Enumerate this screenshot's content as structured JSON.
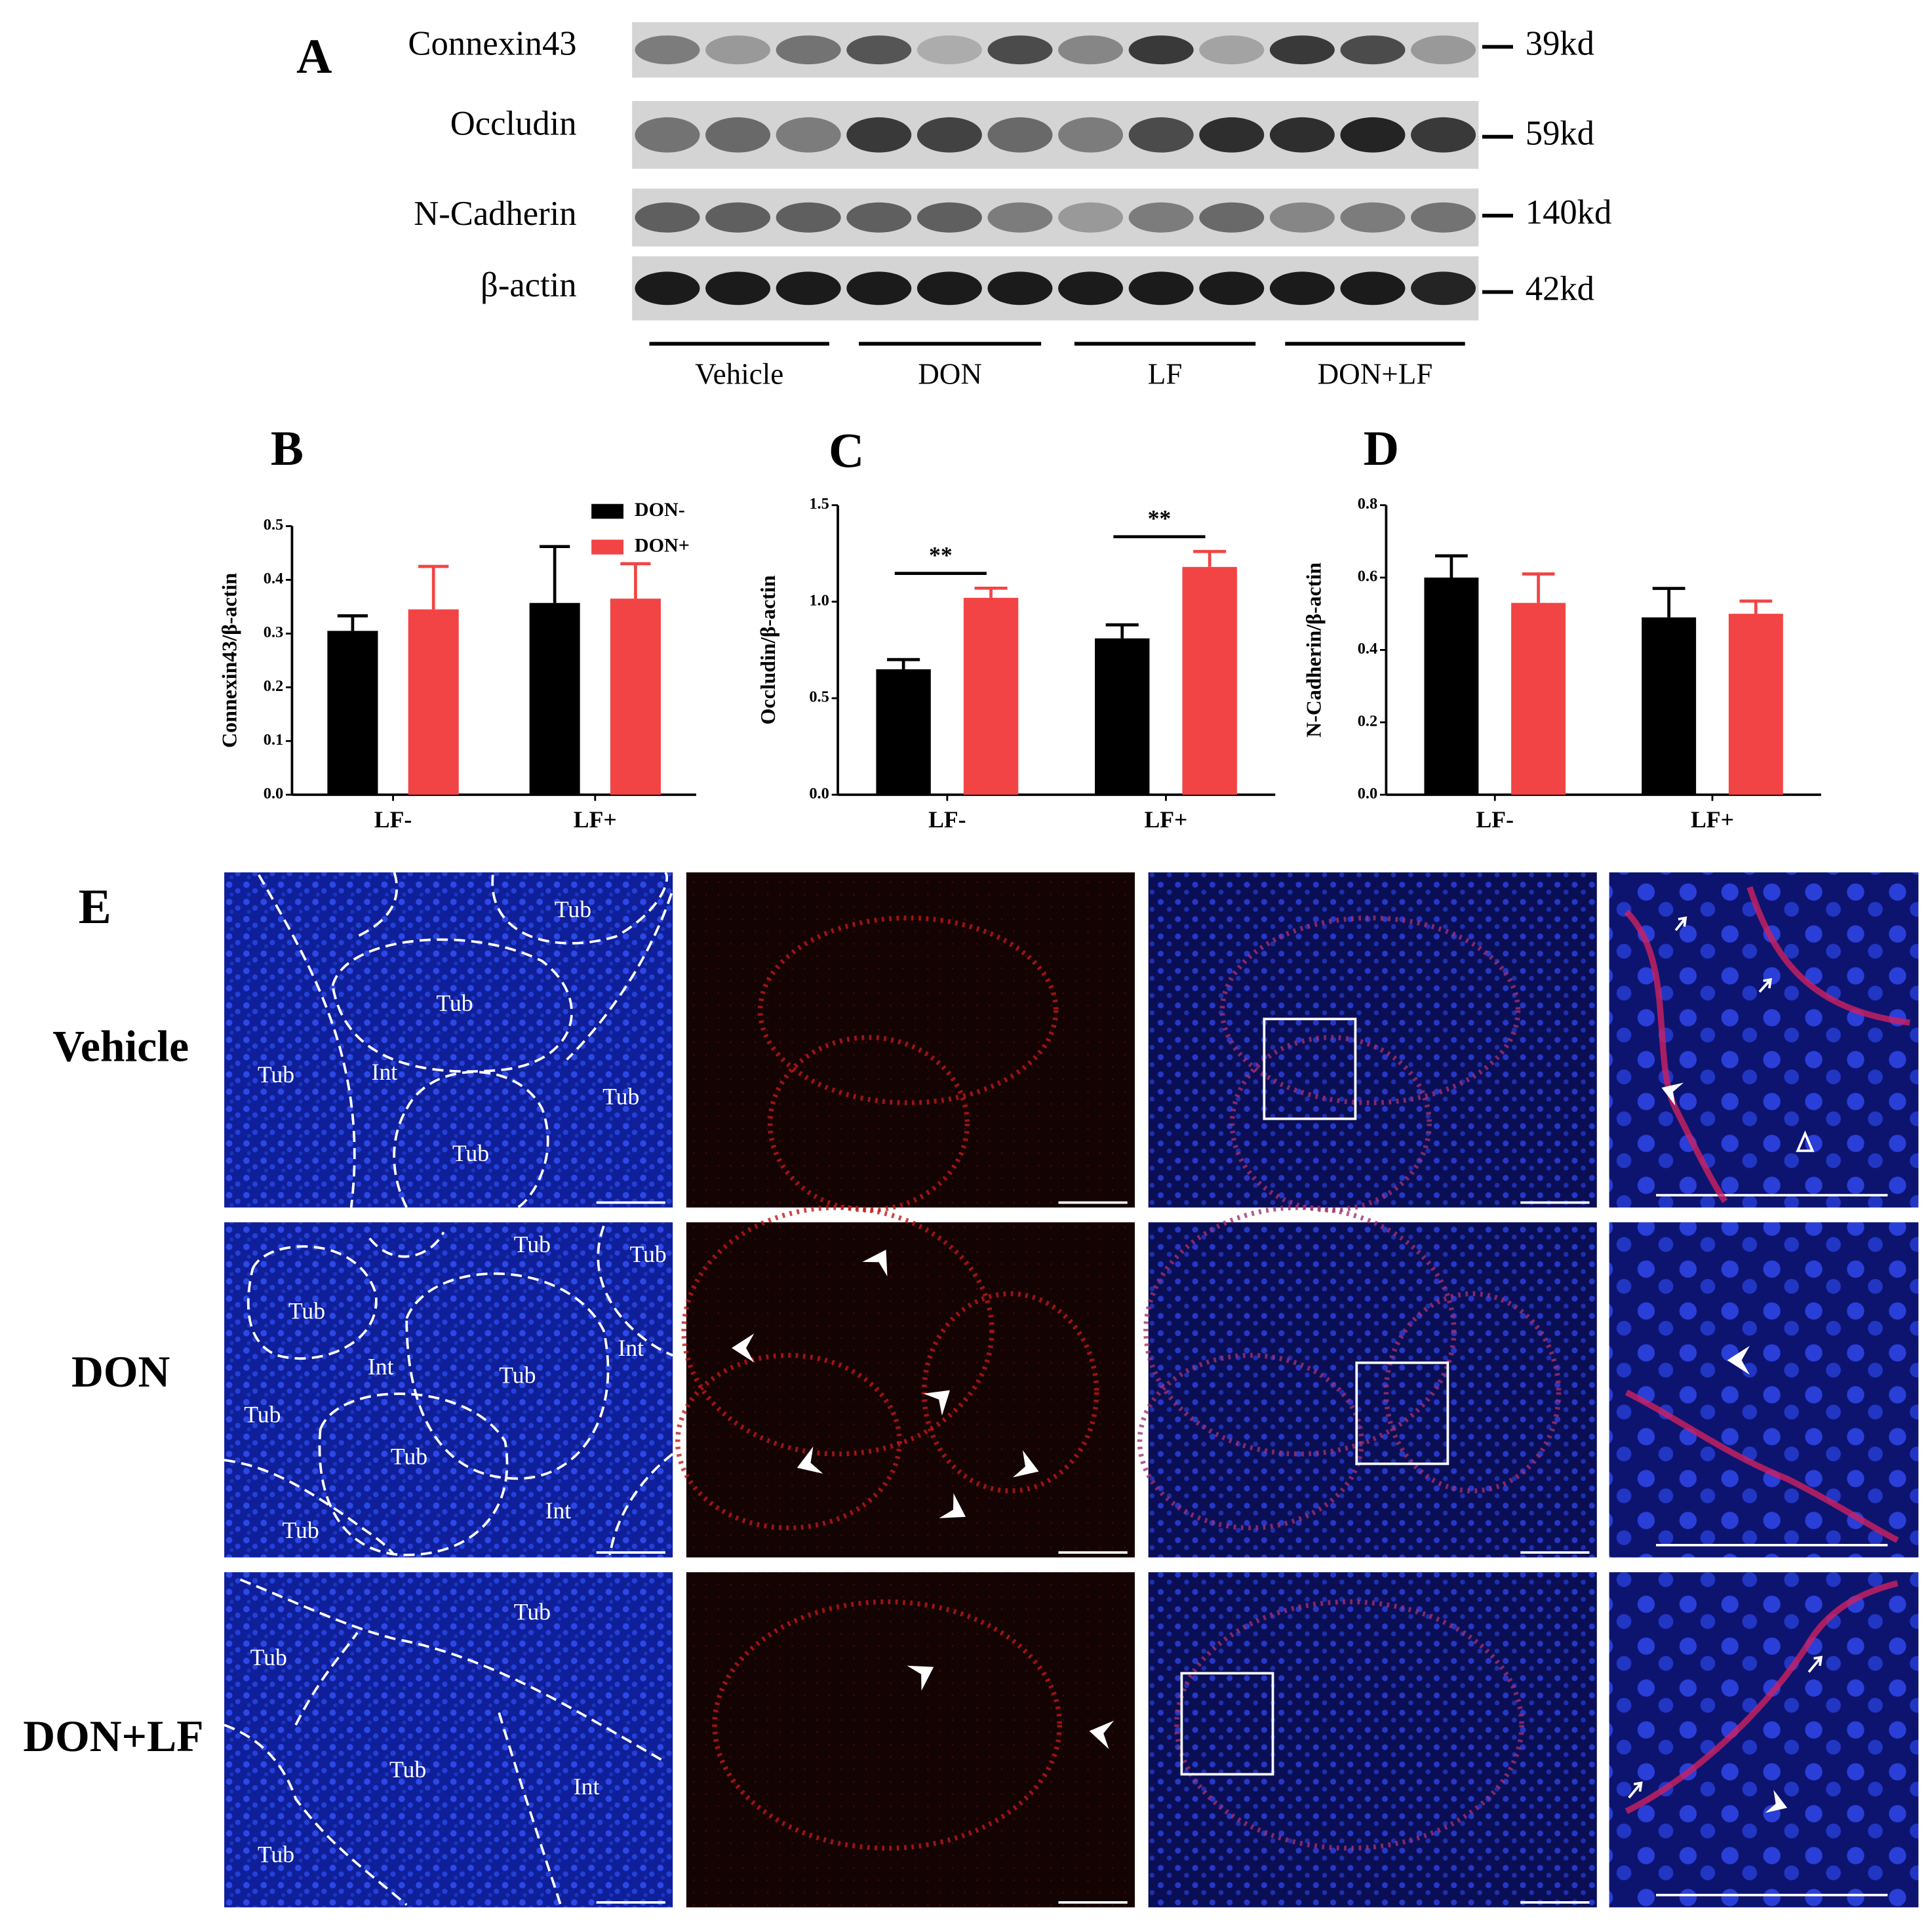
{
  "figure_a": {
    "label": "A",
    "proteins": [
      "Connexin43",
      "Occludin",
      "N-Cadherin",
      "β-actin"
    ],
    "sizes": [
      "39kd",
      "59kd",
      "140kd",
      "42kd"
    ],
    "groups": [
      "Vehicle",
      "DON",
      "LF",
      "DON+LF"
    ]
  },
  "chart_data": [
    {
      "type": "bar",
      "panel": "B",
      "y_label": "Connexin43/β-actin",
      "categories": [
        "LF-",
        "LF+"
      ],
      "series": [
        {
          "name": "DON-",
          "color": "#000000",
          "values": [
            0.305,
            0.357
          ],
          "errors": [
            0.028,
            0.105
          ]
        },
        {
          "name": "DON+",
          "color": "#f24444",
          "values": [
            0.345,
            0.365
          ],
          "errors": [
            0.08,
            0.065
          ]
        }
      ],
      "ylim": [
        0,
        0.5
      ],
      "yticks": [
        {
          "value": 0,
          "label": "0.0"
        },
        0.1,
        0.2,
        0.3,
        0.4,
        0.5
      ],
      "legend": "top-right"
    },
    {
      "type": "bar",
      "panel": "C",
      "y_label": "Occludin/β-actin",
      "categories": [
        "LF-",
        "LF+"
      ],
      "series": [
        {
          "color": "#000000",
          "values": [
            0.65,
            0.81
          ],
          "errors": [
            0.05,
            0.07
          ]
        },
        {
          "color": "#f24444",
          "values": [
            1.02,
            1.18
          ],
          "errors": [
            0.05,
            0.08
          ]
        }
      ],
      "ylim": [
        0,
        1.5
      ],
      "yticks": [
        {
          "value": 0,
          "label": "0.0"
        },
        0.5,
        {
          "value": 1,
          "label": "1.0"
        },
        1.5
      ],
      "significance": [
        "**",
        "**"
      ]
    },
    {
      "type": "bar",
      "panel": "D",
      "y_label": "N-Cadherin/β-actin",
      "categories": [
        "LF-",
        "LF+"
      ],
      "series": [
        {
          "color": "#000000",
          "values": [
            0.6,
            0.49
          ],
          "errors": [
            0.06,
            0.08
          ]
        },
        {
          "color": "#f24444",
          "values": [
            0.53,
            0.5
          ],
          "errors": [
            0.08,
            0.035
          ]
        }
      ],
      "ylim": [
        0,
        0.8
      ],
      "yticks": [
        {
          "value": 0,
          "label": "0.0"
        },
        0.2,
        0.4,
        0.6,
        0.8
      ]
    }
  ],
  "figure_e": {
    "label": "E",
    "rows": [
      {
        "name": "Vehicle",
        "regions": [
          "Tub",
          "Tub",
          "Tub",
          "Int",
          "Tub",
          "Tub"
        ]
      },
      {
        "name": "DON",
        "regions": [
          "Tub",
          "Tub",
          "Tub",
          "Int",
          "Tub",
          "Int",
          "Tub",
          "Tub",
          "Int",
          "Tub"
        ]
      },
      {
        "name": "DON+LF",
        "regions": [
          "Tub",
          "Tub",
          "Tub",
          "Int",
          "Tub"
        ]
      }
    ]
  }
}
